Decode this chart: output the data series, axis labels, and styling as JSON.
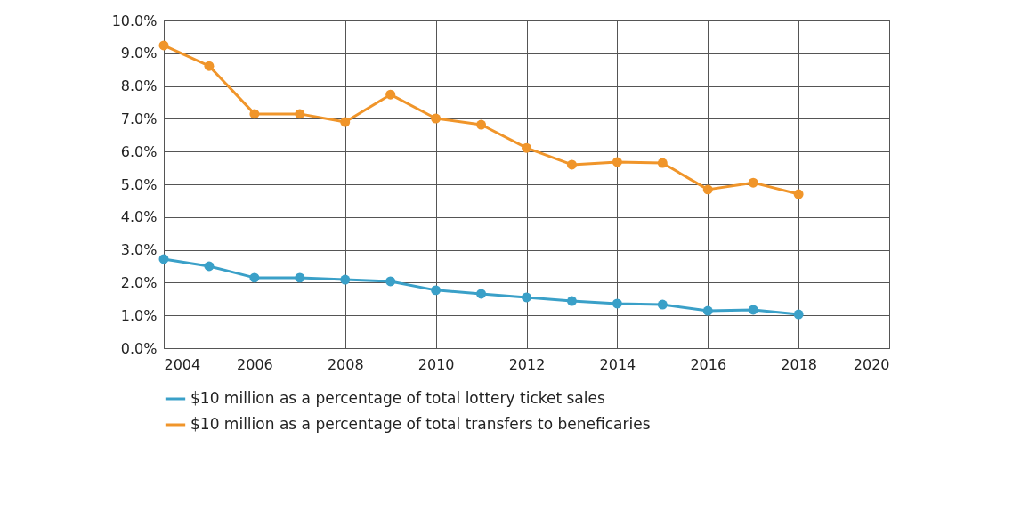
{
  "chart_data": {
    "type": "line",
    "x": [
      2004,
      2005,
      2006,
      2007,
      2008,
      2009,
      2010,
      2011,
      2012,
      2013,
      2014,
      2015,
      2016,
      2017,
      2018
    ],
    "series": [
      {
        "name": "$10 million as a percentage of total lottery ticket sales",
        "color": "#3aa0c8",
        "values": [
          2.72,
          2.5,
          2.15,
          2.15,
          2.09,
          2.04,
          1.77,
          1.66,
          1.55,
          1.44,
          1.36,
          1.33,
          1.14,
          1.17,
          1.03
        ]
      },
      {
        "name": "$10 million as a percentage of total transfers to beneficaries",
        "color": "#f0952a",
        "values": [
          9.24,
          8.61,
          7.15,
          7.15,
          6.9,
          7.74,
          7.01,
          6.82,
          6.11,
          5.6,
          5.68,
          5.65,
          4.84,
          5.05,
          4.7
        ]
      }
    ],
    "xlim": [
      2004,
      2020
    ],
    "xticks": [
      2004,
      2006,
      2008,
      2010,
      2012,
      2014,
      2016,
      2018,
      2020
    ],
    "ylim": [
      0,
      10
    ],
    "yticks": [
      {
        "value": 0,
        "label": "0.0%"
      },
      {
        "value": 1,
        "label": "1.0%"
      },
      {
        "value": 2,
        "label": "2.0%"
      },
      {
        "value": 3,
        "label": "3.0%"
      },
      {
        "value": 4,
        "label": "4.0%"
      },
      {
        "value": 5,
        "label": "5.0%"
      },
      {
        "value": 6,
        "label": "6.0%"
      },
      {
        "value": 7,
        "label": "7.0%"
      },
      {
        "value": 8,
        "label": "8.0%"
      },
      {
        "value": 9,
        "label": "9.0%"
      },
      {
        "value": 10,
        "label": "10.0%"
      }
    ],
    "grid": true,
    "legend": "bottom",
    "marker": "circle",
    "line_style": "solid"
  }
}
